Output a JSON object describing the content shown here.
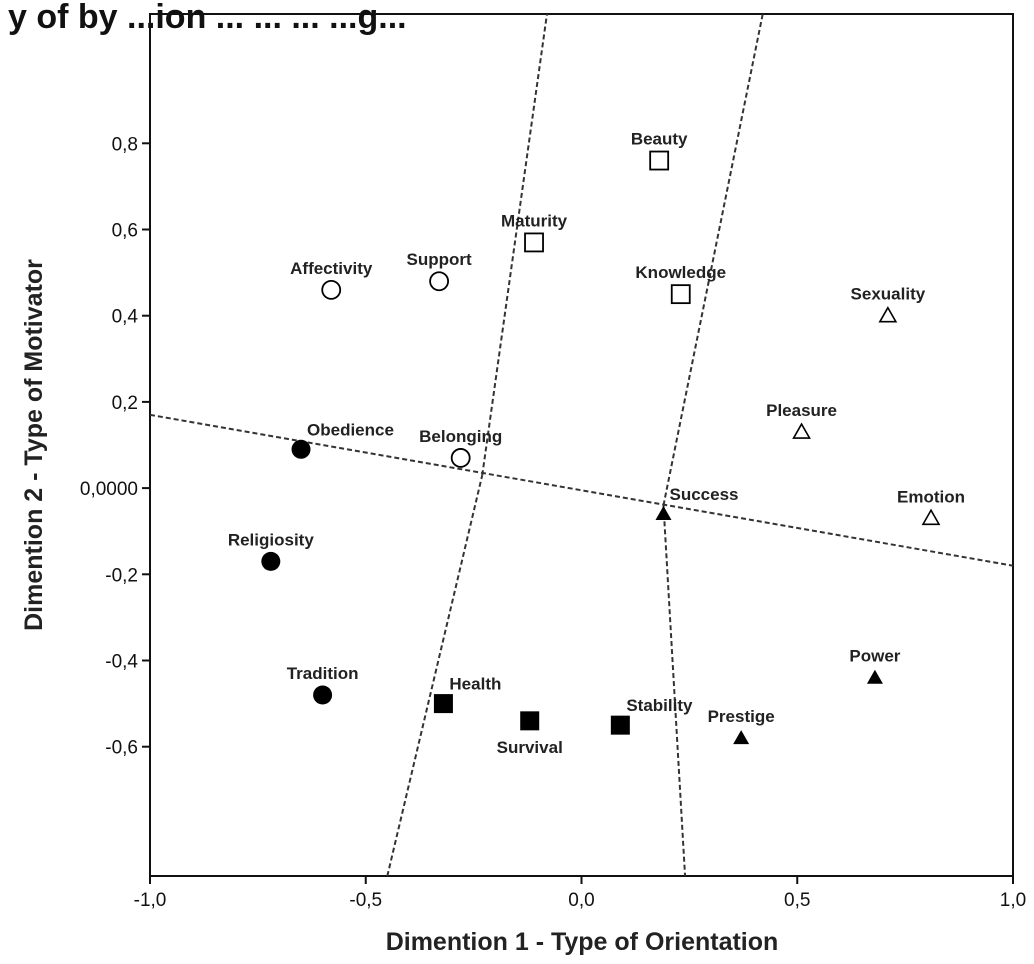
{
  "chart_data": {
    "type": "scatter",
    "title": "y of by ...ion ... ... ... ...g...",
    "xlabel": "Dimention 1 - Type of Orientation",
    "ylabel": "Dimention 2 - Type of Motivator",
    "xlim": [
      -1.0,
      1.0
    ],
    "ylim": [
      -0.9,
      1.1
    ],
    "x_ticks": [
      {
        "value": -1.0,
        "label": "-1,0"
      },
      {
        "value": -0.5,
        "label": "-0,5"
      },
      {
        "value": 0.0,
        "label": "0,0"
      },
      {
        "value": 0.5,
        "label": "0,5"
      },
      {
        "value": 1.0,
        "label": "1,0"
      }
    ],
    "y_ticks": [
      {
        "value": 0.8,
        "label": "0,8"
      },
      {
        "value": 0.6,
        "label": "0,6"
      },
      {
        "value": 0.4,
        "label": "0,4"
      },
      {
        "value": 0.2,
        "label": "0,2"
      },
      {
        "value": 0.0,
        "label": "0,0000"
      },
      {
        "value": -0.2,
        "label": "-0,2"
      },
      {
        "value": -0.4,
        "label": "-0,4"
      },
      {
        "value": -0.6,
        "label": "-0,6"
      }
    ],
    "grid": false,
    "points": [
      {
        "label": "Beauty",
        "x": 0.18,
        "y": 0.76,
        "marker": "square-open",
        "label_pos": "above"
      },
      {
        "label": "Maturity",
        "x": -0.11,
        "y": 0.57,
        "marker": "square-open",
        "label_pos": "above"
      },
      {
        "label": "Knowledge",
        "x": 0.23,
        "y": 0.45,
        "marker": "square-open",
        "label_pos": "above"
      },
      {
        "label": "Affectivity",
        "x": -0.58,
        "y": 0.46,
        "marker": "circle-open",
        "label_pos": "above"
      },
      {
        "label": "Support",
        "x": -0.33,
        "y": 0.48,
        "marker": "circle-open",
        "label_pos": "above"
      },
      {
        "label": "Belonging",
        "x": -0.28,
        "y": 0.07,
        "marker": "circle-open",
        "label_pos": "above"
      },
      {
        "label": "Obedience",
        "x": -0.65,
        "y": 0.09,
        "marker": "circle-filled",
        "label_pos": "above-right"
      },
      {
        "label": "Religiosity",
        "x": -0.72,
        "y": -0.17,
        "marker": "circle-filled",
        "label_pos": "above"
      },
      {
        "label": "Tradition",
        "x": -0.6,
        "y": -0.48,
        "marker": "circle-filled",
        "label_pos": "above"
      },
      {
        "label": "Health",
        "x": -0.32,
        "y": -0.5,
        "marker": "square-filled",
        "label_pos": "above-right"
      },
      {
        "label": "Survival",
        "x": -0.12,
        "y": -0.54,
        "marker": "square-filled",
        "label_pos": "below"
      },
      {
        "label": "Stability",
        "x": 0.09,
        "y": -0.55,
        "marker": "square-filled",
        "label_pos": "above-right"
      },
      {
        "label": "Success",
        "x": 0.19,
        "y": -0.06,
        "marker": "triangle-filled",
        "label_pos": "above-right"
      },
      {
        "label": "Prestige",
        "x": 0.37,
        "y": -0.58,
        "marker": "triangle-filled",
        "label_pos": "above"
      },
      {
        "label": "Power",
        "x": 0.68,
        "y": -0.44,
        "marker": "triangle-filled",
        "label_pos": "above"
      },
      {
        "label": "Sexuality",
        "x": 0.71,
        "y": 0.4,
        "marker": "triangle-open",
        "label_pos": "above"
      },
      {
        "label": "Pleasure",
        "x": 0.51,
        "y": 0.13,
        "marker": "triangle-open",
        "label_pos": "above"
      },
      {
        "label": "Emotion",
        "x": 0.81,
        "y": -0.07,
        "marker": "triangle-open",
        "label_pos": "above"
      }
    ],
    "divider_lines": [
      {
        "from": [
          -1.0,
          0.17
        ],
        "to": [
          1.0,
          -0.18
        ]
      },
      {
        "from": [
          -0.45,
          -0.9
        ],
        "to": [
          -0.23,
          0.03
        ]
      },
      {
        "from": [
          -0.23,
          0.03
        ],
        "to": [
          -0.08,
          1.1
        ]
      },
      {
        "from": [
          0.19,
          -0.04
        ],
        "to": [
          0.42,
          1.1
        ]
      },
      {
        "from": [
          0.19,
          -0.04
        ],
        "to": [
          0.24,
          -0.9
        ]
      }
    ],
    "colors": {
      "marker": "#000000",
      "divider": "#333333",
      "axis": "#111111"
    }
  }
}
